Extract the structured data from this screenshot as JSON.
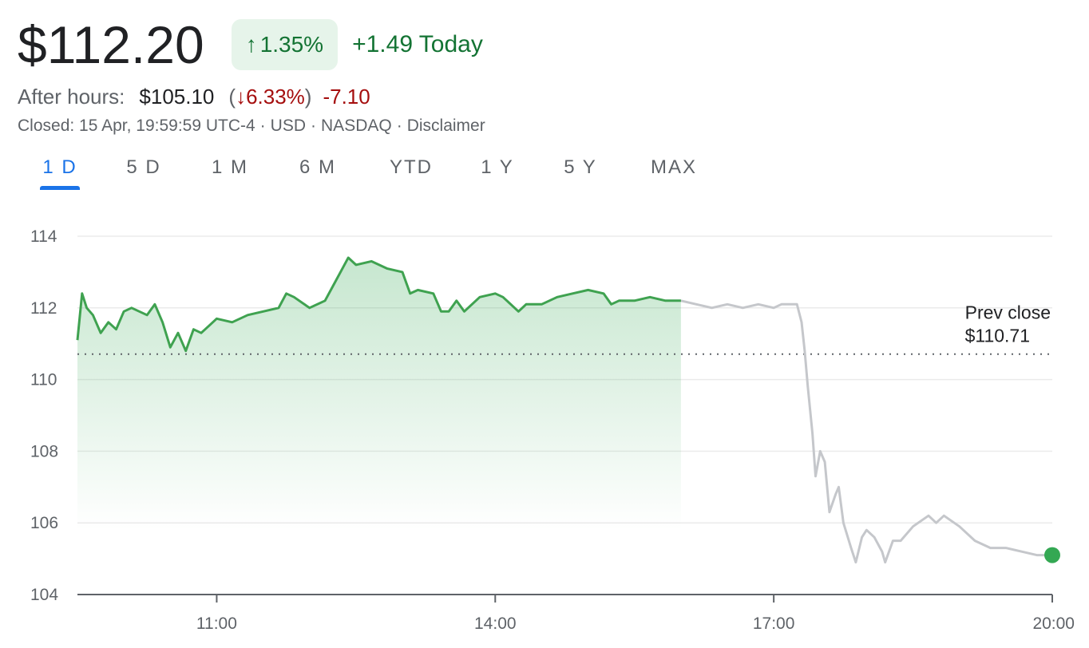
{
  "quote": {
    "price": "$112.20",
    "change_arrow": "↑",
    "change_pct": "1.35%",
    "change_today": "+1.49 Today"
  },
  "after_hours": {
    "label": "After hours:",
    "price": "$105.10",
    "open_paren": "(",
    "arrow": "↓",
    "pct": "6.33%",
    "close_paren": ")",
    "change": "-7.10"
  },
  "meta": {
    "closed": "Closed: 15 Apr, 19:59:59 UTC-4",
    "currency": "USD",
    "exchange": "NASDAQ",
    "disclaimer": "Disclaimer",
    "sep": "·"
  },
  "tabs": [
    "1 D",
    "5 D",
    "1 M",
    "6 M",
    "YTD",
    "1 Y",
    "5 Y",
    "MAX"
  ],
  "active_tab": "1 D",
  "colors": {
    "up": "#34a853",
    "line_market": "#3fa250",
    "line_after": "#c5c7cb",
    "down": "#a50e0e",
    "accent": "#1a73e8"
  },
  "chart_data": {
    "type": "line",
    "ylim": [
      104,
      114
    ],
    "yticks": [
      104,
      106,
      108,
      110,
      112,
      114
    ],
    "ytick_labels": [
      "104",
      "106",
      "108",
      "110",
      "112",
      "114"
    ],
    "xlim": [
      "09:30",
      "20:00"
    ],
    "xticks": [
      "11:00",
      "14:00",
      "17:00",
      "20:00"
    ],
    "prev_close": {
      "label": "Prev close",
      "value_text": "$110.71",
      "value": 110.71
    },
    "market_close_time": "16:00",
    "series": [
      {
        "segment": "regular",
        "points": [
          [
            "09:30",
            111.1
          ],
          [
            "09:33",
            112.4
          ],
          [
            "09:36",
            112.0
          ],
          [
            "09:40",
            111.8
          ],
          [
            "09:45",
            111.3
          ],
          [
            "09:50",
            111.6
          ],
          [
            "09:55",
            111.4
          ],
          [
            "10:00",
            111.9
          ],
          [
            "10:05",
            112.0
          ],
          [
            "10:10",
            111.9
          ],
          [
            "10:15",
            111.8
          ],
          [
            "10:20",
            112.1
          ],
          [
            "10:25",
            111.6
          ],
          [
            "10:30",
            110.9
          ],
          [
            "10:35",
            111.3
          ],
          [
            "10:40",
            110.8
          ],
          [
            "10:45",
            111.4
          ],
          [
            "10:50",
            111.3
          ],
          [
            "10:55",
            111.5
          ],
          [
            "11:00",
            111.7
          ],
          [
            "11:10",
            111.6
          ],
          [
            "11:20",
            111.8
          ],
          [
            "11:30",
            111.9
          ],
          [
            "11:40",
            112.0
          ],
          [
            "11:45",
            112.4
          ],
          [
            "11:50",
            112.3
          ],
          [
            "12:00",
            112.0
          ],
          [
            "12:10",
            112.2
          ],
          [
            "12:15",
            112.6
          ],
          [
            "12:20",
            113.0
          ],
          [
            "12:25",
            113.4
          ],
          [
            "12:30",
            113.2
          ],
          [
            "12:40",
            113.3
          ],
          [
            "12:50",
            113.1
          ],
          [
            "13:00",
            113.0
          ],
          [
            "13:05",
            112.4
          ],
          [
            "13:10",
            112.5
          ],
          [
            "13:20",
            112.4
          ],
          [
            "13:25",
            111.9
          ],
          [
            "13:30",
            111.9
          ],
          [
            "13:35",
            112.2
          ],
          [
            "13:40",
            111.9
          ],
          [
            "13:50",
            112.3
          ],
          [
            "14:00",
            112.4
          ],
          [
            "14:05",
            112.3
          ],
          [
            "14:15",
            111.9
          ],
          [
            "14:20",
            112.1
          ],
          [
            "14:30",
            112.1
          ],
          [
            "14:40",
            112.3
          ],
          [
            "14:50",
            112.4
          ],
          [
            "15:00",
            112.5
          ],
          [
            "15:10",
            112.4
          ],
          [
            "15:15",
            112.1
          ],
          [
            "15:20",
            112.2
          ],
          [
            "15:30",
            112.2
          ],
          [
            "15:40",
            112.3
          ],
          [
            "15:50",
            112.2
          ],
          [
            "16:00",
            112.2
          ]
        ]
      },
      {
        "segment": "after_hours",
        "points": [
          [
            "16:00",
            112.2
          ],
          [
            "16:10",
            112.1
          ],
          [
            "16:20",
            112.0
          ],
          [
            "16:30",
            112.1
          ],
          [
            "16:40",
            112.0
          ],
          [
            "16:50",
            112.1
          ],
          [
            "17:00",
            112.0
          ],
          [
            "17:05",
            112.1
          ],
          [
            "17:15",
            112.1
          ],
          [
            "17:18",
            111.6
          ],
          [
            "17:20",
            110.8
          ],
          [
            "17:22",
            109.8
          ],
          [
            "17:25",
            108.5
          ],
          [
            "17:27",
            107.3
          ],
          [
            "17:30",
            108.0
          ],
          [
            "17:33",
            107.7
          ],
          [
            "17:36",
            106.3
          ],
          [
            "17:40",
            106.8
          ],
          [
            "17:42",
            107.0
          ],
          [
            "17:45",
            106.0
          ],
          [
            "17:50",
            105.3
          ],
          [
            "17:53",
            104.9
          ],
          [
            "17:57",
            105.6
          ],
          [
            "18:00",
            105.8
          ],
          [
            "18:05",
            105.6
          ],
          [
            "18:10",
            105.2
          ],
          [
            "18:12",
            104.9
          ],
          [
            "18:17",
            105.5
          ],
          [
            "18:22",
            105.5
          ],
          [
            "18:30",
            105.9
          ],
          [
            "18:40",
            106.2
          ],
          [
            "18:45",
            106.0
          ],
          [
            "18:50",
            106.2
          ],
          [
            "19:00",
            105.9
          ],
          [
            "19:10",
            105.5
          ],
          [
            "19:20",
            105.3
          ],
          [
            "19:30",
            105.3
          ],
          [
            "19:40",
            105.2
          ],
          [
            "19:50",
            105.1
          ],
          [
            "20:00",
            105.1
          ]
        ]
      }
    ],
    "last_point": [
      "20:00",
      105.1
    ],
    "grid": true
  }
}
